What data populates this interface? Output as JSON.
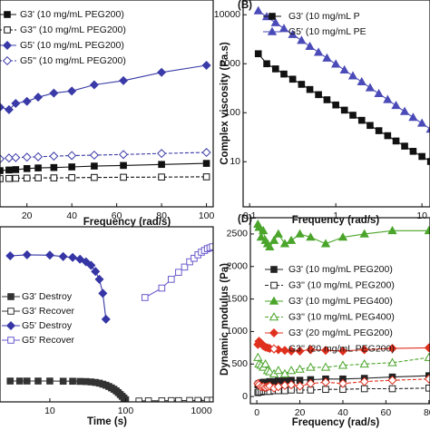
{
  "chart_data": [
    {
      "type": "line",
      "xlabel": "Frequency (rad/s)",
      "xlim": [
        8,
        103
      ],
      "ylim": [
        0,
        1000
      ],
      "xticks": [
        20,
        40,
        60,
        80,
        100
      ],
      "x": [
        8,
        12,
        15,
        20,
        25,
        32,
        40,
        50,
        63,
        80,
        100
      ],
      "series": [
        {
          "name": "G3'  (10 mg/mL PEG200)",
          "color": "#111111",
          "marker": "square",
          "dash": false,
          "values": [
            175,
            178,
            180,
            185,
            188,
            190,
            193,
            197,
            200,
            205,
            210
          ]
        },
        {
          "name": "G3''  (10 mg/mL PEG200)",
          "color": "#111111",
          "marker": "square-open",
          "dash": true,
          "values": [
            136,
            137,
            138,
            139,
            140,
            140,
            141,
            142,
            143,
            144,
            145
          ]
        },
        {
          "name": "G5'  (10 mg/mL PEG200)",
          "color": "#3a3aa8",
          "marker": "diamond",
          "dash": false,
          "values": [
            482,
            470,
            500,
            510,
            530,
            550,
            560,
            590,
            610,
            650,
            684
          ]
        },
        {
          "name": "G5''  (10 mg/mL PEG200)",
          "color": "#3a3aa8",
          "marker": "diamond-open",
          "dash": true,
          "values": [
            232,
            236,
            238,
            240,
            242,
            245,
            248,
            250,
            253,
            258,
            263
          ]
        }
      ]
    },
    {
      "type": "line",
      "panel_label": "(B)",
      "xlabel": "Frequency (rad/s)",
      "ylabel": "Complex viscosity (Pa.s)",
      "xlog": true,
      "ylog": true,
      "xlim": [
        0.084,
        12.4
      ],
      "ylim": [
        1.2,
        20000
      ],
      "xticks": [
        0.1,
        1,
        10
      ],
      "yticks": [
        10,
        100,
        1000,
        10000
      ],
      "x": [
        0.126,
        0.158,
        0.2,
        0.25,
        0.316,
        0.4,
        0.5,
        0.63,
        0.79,
        1,
        1.26,
        1.58,
        2,
        2.5,
        3.16,
        4,
        5,
        6.3,
        7.9,
        10,
        12.6
      ],
      "series": [
        {
          "name": "G3' (10 mg/mL P",
          "color": "#111111",
          "marker": "square",
          "dash": false,
          "values": [
            1600,
            1000,
            785,
            616,
            484,
            380,
            298,
            234,
            184,
            144,
            113,
            89,
            70,
            55,
            43,
            34,
            26.5,
            20.8,
            16.3,
            12.8,
            10.1
          ]
        },
        {
          "name": "G5' (10 mg/mL PE",
          "color": "#4a4ab8",
          "marker": "triangle",
          "dash": false,
          "values": [
            12000,
            9090,
            6880,
            5210,
            3950,
            2990,
            2260,
            1710,
            1300,
            983,
            744,
            563,
            427,
            323,
            245,
            185,
            140,
            106,
            80,
            61,
            46
          ]
        }
      ]
    },
    {
      "type": "line",
      "xlabel": "Time (s)",
      "xlog": true,
      "xlim": [
        2.2,
        1430
      ],
      "ylim": [
        0,
        1000
      ],
      "xticks": [
        10,
        100,
        1000
      ],
      "series": [
        {
          "name": "G3' Destroy",
          "color": "#333333",
          "marker": "square",
          "dash": false,
          "x": [
            3,
            4,
            5,
            7,
            10,
            15,
            20,
            25,
            30,
            35,
            40,
            45,
            50,
            55,
            60,
            65,
            70,
            75,
            80,
            85,
            90,
            95,
            100
          ],
          "values": [
            119,
            119,
            119,
            119,
            119,
            118,
            118,
            117,
            116,
            114,
            111,
            107,
            101,
            95,
            88,
            80,
            72,
            63,
            53,
            42,
            32,
            22,
            12
          ]
        },
        {
          "name": "G3' Recover",
          "color": "#333333",
          "marker": "square-open",
          "dash": false,
          "x": [
            150,
            200,
            300,
            400,
            500,
            700,
            900,
            1200,
            1400
          ],
          "values": [
            5,
            6,
            6,
            7,
            7,
            8,
            8,
            9,
            9
          ]
        },
        {
          "name": "G5' Destroy",
          "color": "#3535a5",
          "marker": "diamond",
          "dash": false,
          "x": [
            3,
            5,
            10,
            15,
            20,
            25,
            30,
            35,
            40,
            45,
            50,
            55
          ],
          "values": [
            834,
            840,
            838,
            830,
            825,
            815,
            800,
            780,
            745,
            700,
            620,
            472
          ]
        },
        {
          "name": "G5' Recover",
          "color": "#6a5acd",
          "marker": "square-open",
          "dash": false,
          "x": [
            180,
            300,
            400,
            500,
            600,
            700,
            800,
            900,
            1000,
            1100,
            1200,
            1300,
            1400
          ],
          "values": [
            596,
            650,
            700,
            740,
            770,
            800,
            820,
            840,
            855,
            865,
            875,
            880,
            886
          ]
        }
      ]
    },
    {
      "type": "line",
      "panel_label": "(D)",
      "xlabel": "Frequency (rad/s)",
      "ylabel": "Dynamic modulus (Pa)",
      "xlim": [
        -3,
        80.5
      ],
      "ylim": [
        -110,
        2750
      ],
      "xticks": [
        0,
        20,
        40,
        60,
        80
      ],
      "yticks": [
        0,
        500,
        1000,
        1500,
        2000,
        2500
      ],
      "x": [
        0.5,
        1,
        2,
        3,
        4,
        5,
        6,
        8,
        10,
        13,
        16,
        20,
        25,
        32,
        40,
        50,
        63,
        80
      ],
      "series": [
        {
          "name": "G3'  (10 mg/mL PEG200)",
          "color": "#222222",
          "marker": "square",
          "dash": false,
          "values": [
            180,
            200,
            210,
            220,
            220,
            220,
            230,
            230,
            240,
            240,
            250,
            250,
            260,
            270,
            270,
            280,
            300,
            320
          ]
        },
        {
          "name": "G3''  (10 mg/mL PEG200)",
          "color": "#222222",
          "marker": "square-open",
          "dash": true,
          "values": [
            60,
            70,
            70,
            80,
            80,
            80,
            80,
            90,
            90,
            90,
            100,
            100,
            100,
            110,
            110,
            120,
            120,
            130
          ]
        },
        {
          "name": "G3'  (10 mg/mL PEG400)",
          "color": "#4aa52a",
          "marker": "triangle",
          "dash": false,
          "values": [
            2650,
            2600,
            2450,
            2550,
            2400,
            2350,
            2300,
            2400,
            2500,
            2350,
            2400,
            2500,
            2450,
            2350,
            2450,
            2500,
            2550,
            2550
          ]
        },
        {
          "name": "G3''  (10 mg/mL PEG400)",
          "color": "#4aa52a",
          "marker": "triangle-open",
          "dash": true,
          "values": [
            600,
            500,
            480,
            450,
            500,
            400,
            380,
            350,
            400,
            350,
            400,
            420,
            450,
            450,
            480,
            500,
            520,
            600
          ]
        },
        {
          "name": "G3'  (20 mg/mL PEG200)",
          "color": "#e0301e",
          "marker": "diamond",
          "dash": false,
          "values": [
            800,
            850,
            820,
            780,
            760,
            750,
            740,
            730,
            720,
            710,
            700,
            700,
            720,
            710,
            700,
            720,
            740,
            750
          ]
        },
        {
          "name": "G3''  (20 mg/mL PEG200)",
          "color": "#e0301e",
          "marker": "diamond-open",
          "dash": true,
          "values": [
            200,
            180,
            150,
            150,
            140,
            150,
            160,
            130,
            150,
            170,
            180,
            160,
            200,
            220,
            200,
            230,
            250,
            270
          ]
        }
      ]
    }
  ]
}
